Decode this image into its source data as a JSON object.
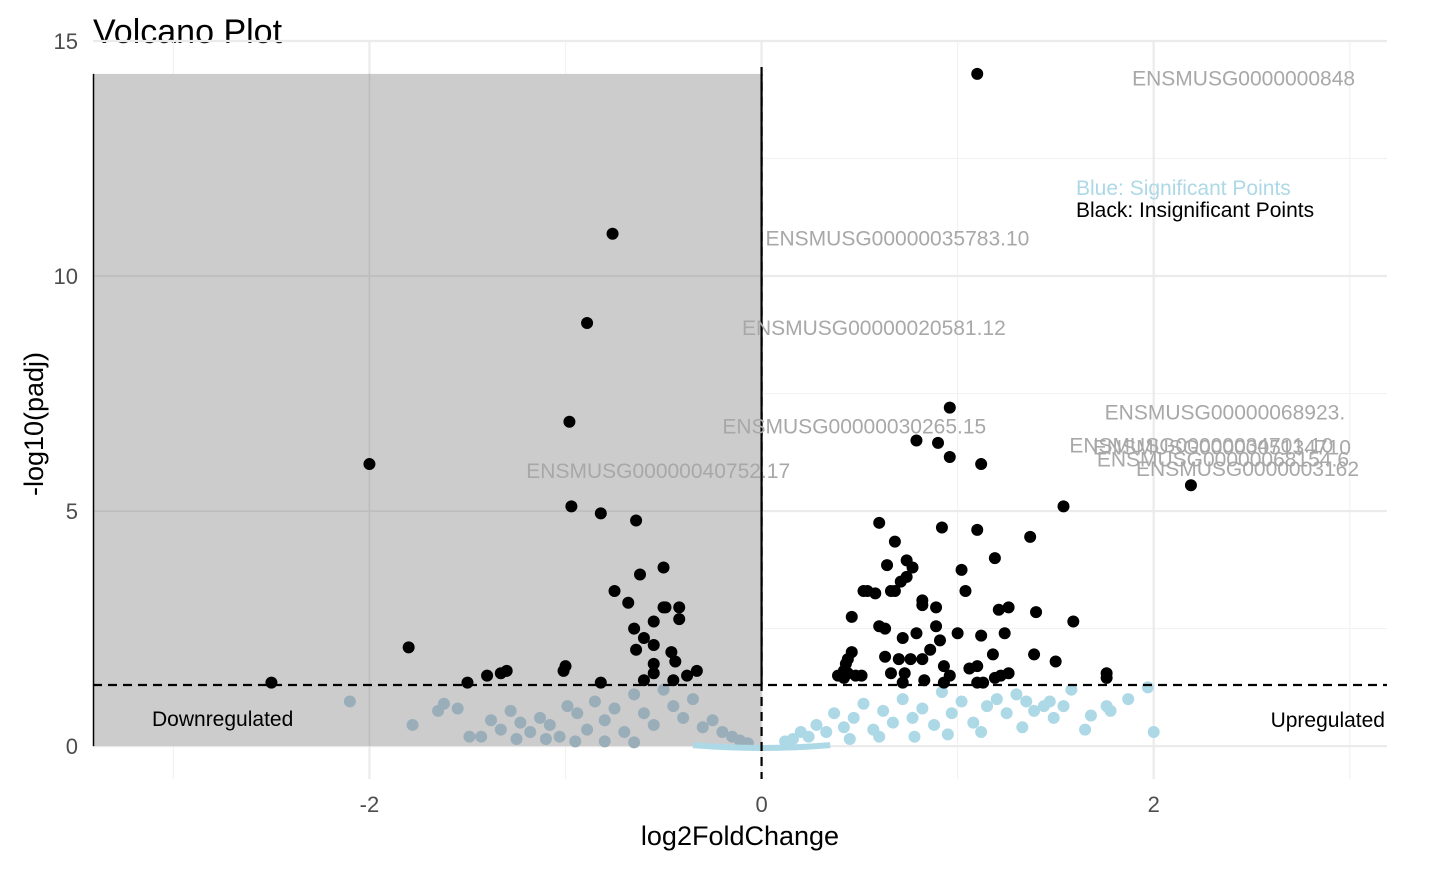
{
  "chart_data": {
    "type": "scatter",
    "title": "Volcano Plot",
    "xlabel": "log2FoldChange",
    "ylabel": "-log10(padj)",
    "xlim": [
      -3.41,
      3.19
    ],
    "ylim": [
      -0.7,
      15.0
    ],
    "x_ticks": [
      -2,
      0,
      2
    ],
    "x_tick_labels": [
      "-2",
      "0",
      "2"
    ],
    "y_ticks": [
      0,
      5,
      10,
      15
    ],
    "y_tick_labels": [
      "0",
      "5",
      "10",
      "15"
    ],
    "grid": true,
    "thresholds": {
      "padj_line": 1.3,
      "fold_change_line": 0
    },
    "shaded_region": {
      "x": [
        -3.41,
        0
      ],
      "y": [
        0,
        14.3
      ],
      "color": "#cccccc"
    },
    "colors": {
      "significant": "#add8e6",
      "insignificant": "#000000",
      "downregulated_low": "#9aaeb9",
      "gene_label": "#a8a8a8",
      "shade": "#cccccc"
    },
    "legend": {
      "placement": "top-right",
      "entries": [
        "Blue: Significant Points",
        "Black: Insignificant Points"
      ]
    },
    "region_labels": {
      "down": "Downregulated",
      "up": "Upregulated"
    },
    "series": [
      {
        "color": "#000000",
        "points": [
          [
            1.1,
            14.3
          ],
          [
            -0.76,
            10.9
          ],
          [
            -0.89,
            9.0
          ],
          [
            -0.98,
            6.9
          ],
          [
            -2.0,
            6.0
          ],
          [
            -0.97,
            5.1
          ],
          [
            -0.82,
            4.95
          ],
          [
            -0.64,
            4.8
          ],
          [
            -0.5,
            3.8
          ],
          [
            -0.62,
            3.65
          ],
          [
            -0.75,
            3.3
          ],
          [
            -0.68,
            3.05
          ],
          [
            -0.5,
            2.95
          ],
          [
            -0.42,
            2.95
          ],
          [
            -0.42,
            2.7
          ],
          [
            -0.49,
            2.95
          ],
          [
            -0.55,
            2.65
          ],
          [
            -0.65,
            2.5
          ],
          [
            -0.6,
            2.3
          ],
          [
            -0.55,
            2.15
          ],
          [
            -0.64,
            2.05
          ],
          [
            -0.46,
            2.0
          ],
          [
            -0.44,
            1.8
          ],
          [
            -0.55,
            1.75
          ],
          [
            -0.33,
            1.6
          ],
          [
            -0.38,
            1.5
          ],
          [
            -0.55,
            1.55
          ],
          [
            -0.45,
            1.4
          ],
          [
            -0.6,
            1.4
          ],
          [
            -1.8,
            2.1
          ],
          [
            -1.3,
            1.6
          ],
          [
            -1.33,
            1.55
          ],
          [
            -1.4,
            1.5
          ],
          [
            -1.0,
            1.7
          ],
          [
            -1.01,
            1.6
          ],
          [
            -0.82,
            1.35
          ],
          [
            -1.5,
            1.35
          ],
          [
            -2.5,
            1.35
          ],
          [
            0.96,
            7.2
          ],
          [
            0.79,
            6.5
          ],
          [
            0.9,
            6.45
          ],
          [
            0.96,
            6.15
          ],
          [
            1.12,
            6.0
          ],
          [
            1.54,
            5.1
          ],
          [
            2.19,
            5.55
          ],
          [
            0.6,
            4.75
          ],
          [
            0.92,
            4.65
          ],
          [
            1.1,
            4.6
          ],
          [
            1.37,
            4.45
          ],
          [
            0.68,
            4.35
          ],
          [
            0.74,
            3.95
          ],
          [
            0.64,
            3.85
          ],
          [
            0.77,
            3.8
          ],
          [
            1.19,
            4.0
          ],
          [
            1.02,
            3.75
          ],
          [
            0.74,
            3.6
          ],
          [
            0.71,
            3.5
          ],
          [
            0.54,
            3.3
          ],
          [
            0.52,
            3.3
          ],
          [
            0.58,
            3.25
          ],
          [
            0.66,
            3.3
          ],
          [
            0.68,
            3.3
          ],
          [
            0.82,
            3.1
          ],
          [
            0.82,
            3.0
          ],
          [
            1.04,
            3.3
          ],
          [
            0.89,
            2.95
          ],
          [
            1.21,
            2.9
          ],
          [
            1.26,
            2.95
          ],
          [
            1.4,
            2.85
          ],
          [
            0.46,
            2.75
          ],
          [
            1.59,
            2.65
          ],
          [
            0.6,
            2.55
          ],
          [
            0.63,
            2.5
          ],
          [
            0.89,
            2.55
          ],
          [
            0.79,
            2.4
          ],
          [
            1.0,
            2.4
          ],
          [
            1.12,
            2.35
          ],
          [
            1.24,
            2.4
          ],
          [
            0.72,
            2.3
          ],
          [
            0.91,
            2.25
          ],
          [
            0.86,
            2.05
          ],
          [
            0.63,
            1.9
          ],
          [
            0.7,
            1.85
          ],
          [
            0.76,
            1.85
          ],
          [
            0.82,
            1.85
          ],
          [
            1.1,
            1.7
          ],
          [
            1.39,
            1.95
          ],
          [
            1.5,
            1.8
          ],
          [
            1.18,
            1.95
          ],
          [
            0.46,
            2.0
          ],
          [
            0.44,
            1.85
          ],
          [
            0.43,
            1.75
          ],
          [
            0.42,
            1.6
          ],
          [
            0.44,
            1.55
          ],
          [
            0.48,
            1.5
          ],
          [
            0.51,
            1.5
          ],
          [
            0.39,
            1.5
          ],
          [
            0.42,
            1.45
          ],
          [
            0.66,
            1.55
          ],
          [
            0.73,
            1.55
          ],
          [
            0.93,
            1.7
          ],
          [
            0.96,
            1.5
          ],
          [
            1.06,
            1.65
          ],
          [
            1.22,
            1.5
          ],
          [
            1.19,
            1.45
          ],
          [
            1.26,
            1.55
          ],
          [
            1.76,
            1.55
          ],
          [
            1.76,
            1.45
          ],
          [
            0.72,
            1.35
          ],
          [
            0.83,
            1.4
          ],
          [
            0.93,
            1.35
          ],
          [
            1.1,
            1.35
          ],
          [
            1.13,
            1.35
          ]
        ]
      },
      {
        "color": "#add8e6",
        "points": [
          [
            1.97,
            1.25
          ],
          [
            2.0,
            0.3
          ],
          [
            1.78,
            0.75
          ],
          [
            1.87,
            1.0
          ],
          [
            1.76,
            0.85
          ],
          [
            1.68,
            0.65
          ],
          [
            1.58,
            1.2
          ],
          [
            1.54,
            0.85
          ],
          [
            1.49,
            0.6
          ],
          [
            1.44,
            0.85
          ],
          [
            1.39,
            0.75
          ],
          [
            1.35,
            0.95
          ],
          [
            1.3,
            1.1
          ],
          [
            1.25,
            0.7
          ],
          [
            1.2,
            1.0
          ],
          [
            1.15,
            0.85
          ],
          [
            1.08,
            0.5
          ],
          [
            1.02,
            0.95
          ],
          [
            0.97,
            0.7
          ],
          [
            0.92,
            1.15
          ],
          [
            0.88,
            0.45
          ],
          [
            0.82,
            0.8
          ],
          [
            0.77,
            0.6
          ],
          [
            0.72,
            1.0
          ],
          [
            0.67,
            0.5
          ],
          [
            0.62,
            0.75
          ],
          [
            0.57,
            0.35
          ],
          [
            0.52,
            0.9
          ],
          [
            0.47,
            0.6
          ],
          [
            0.42,
            0.4
          ],
          [
            0.37,
            0.7
          ],
          [
            0.33,
            0.3
          ],
          [
            0.28,
            0.45
          ],
          [
            0.24,
            0.2
          ],
          [
            0.2,
            0.3
          ],
          [
            0.16,
            0.15
          ],
          [
            0.12,
            0.1
          ],
          [
            1.65,
            0.35
          ],
          [
            1.33,
            0.4
          ],
          [
            1.12,
            0.3
          ],
          [
            0.95,
            0.25
          ],
          [
            0.78,
            0.2
          ],
          [
            0.6,
            0.2
          ],
          [
            0.45,
            0.15
          ],
          [
            1.47,
            0.95
          ]
        ]
      },
      {
        "color": "#9aaeb9",
        "points": [
          [
            -2.1,
            0.95
          ],
          [
            -1.78,
            0.45
          ],
          [
            -1.62,
            0.9
          ],
          [
            -1.55,
            0.8
          ],
          [
            -1.49,
            0.2
          ],
          [
            -1.43,
            0.2
          ],
          [
            -1.38,
            0.55
          ],
          [
            -1.33,
            0.35
          ],
          [
            -1.28,
            0.75
          ],
          [
            -1.23,
            0.5
          ],
          [
            -1.18,
            0.3
          ],
          [
            -1.13,
            0.6
          ],
          [
            -1.08,
            0.45
          ],
          [
            -1.03,
            0.2
          ],
          [
            -0.99,
            0.85
          ],
          [
            -0.94,
            0.7
          ],
          [
            -0.89,
            0.35
          ],
          [
            -0.85,
            0.95
          ],
          [
            -0.8,
            0.55
          ],
          [
            -0.75,
            0.8
          ],
          [
            -0.7,
            0.3
          ],
          [
            -0.65,
            1.1
          ],
          [
            -0.6,
            0.7
          ],
          [
            -0.55,
            0.45
          ],
          [
            -0.5,
            1.2
          ],
          [
            -0.45,
            0.85
          ],
          [
            -0.4,
            0.6
          ],
          [
            -0.35,
            1.0
          ],
          [
            -0.3,
            0.4
          ],
          [
            -0.25,
            0.55
          ],
          [
            -0.2,
            0.3
          ],
          [
            -0.15,
            0.2
          ],
          [
            -0.11,
            0.12
          ],
          [
            -0.07,
            0.06
          ],
          [
            -1.65,
            0.75
          ],
          [
            -1.25,
            0.15
          ],
          [
            -1.1,
            0.15
          ],
          [
            -0.95,
            0.1
          ],
          [
            -0.8,
            0.1
          ],
          [
            -0.65,
            0.08
          ]
        ]
      }
    ],
    "annotations": [
      {
        "text": "ENSMUSG0000000848",
        "x": 1.89,
        "y": 14.05
      },
      {
        "text": "ENSMUSG00000035783.10",
        "x": 0.02,
        "y": 10.65
      },
      {
        "text": "ENSMUSG00000020581.12",
        "x": -0.1,
        "y": 8.75
      },
      {
        "text": "ENSMUSG00000068923.",
        "x": 1.75,
        "y": 6.95
      },
      {
        "text": "ENSMUSG00000030265.15",
        "x": -0.2,
        "y": 6.65
      },
      {
        "text": "ENSMUSG00000034701.10",
        "x": 1.57,
        "y": 6.25
      },
      {
        "text": "ENSMUSG0000005134710",
        "x": 1.69,
        "y": 6.2
      },
      {
        "text": "ENSMUSG00000068154.6",
        "x": 1.71,
        "y": 5.95
      },
      {
        "text": "ENSMUSG0000003162",
        "x": 1.91,
        "y": 5.75
      },
      {
        "text": "ENSMUSG00000040752.17",
        "x": -1.2,
        "y": 5.7
      }
    ]
  }
}
